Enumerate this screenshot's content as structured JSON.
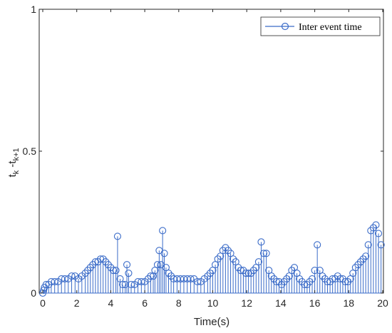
{
  "chart_data": {
    "type": "stem",
    "xlabel": "Time(s)",
    "ylabel_main": "t",
    "ylabel_sub1": "k",
    "ylabel_mid": " -t",
    "ylabel_sub2": "k+1",
    "xlim": [
      0,
      20
    ],
    "ylim": [
      0,
      1
    ],
    "xticks": [
      "0",
      "2",
      "4",
      "6",
      "8",
      "10",
      "12",
      "14",
      "16",
      "18",
      "20"
    ],
    "yticks": [
      "0",
      "0.5",
      "1"
    ],
    "legend": {
      "label": "Inter event time",
      "position": "top-right"
    },
    "grid": false,
    "series": [
      {
        "marker": "circle",
        "color": "#3a6bc8",
        "points": [
          [
            0.0,
            0.0
          ],
          [
            0.05,
            0.01
          ],
          [
            0.1,
            0.02
          ],
          [
            0.2,
            0.03
          ],
          [
            0.35,
            0.03
          ],
          [
            0.5,
            0.04
          ],
          [
            0.7,
            0.04
          ],
          [
            0.9,
            0.04
          ],
          [
            1.1,
            0.05
          ],
          [
            1.3,
            0.05
          ],
          [
            1.5,
            0.05
          ],
          [
            1.7,
            0.06
          ],
          [
            1.9,
            0.06
          ],
          [
            2.1,
            0.05
          ],
          [
            2.3,
            0.06
          ],
          [
            2.5,
            0.07
          ],
          [
            2.65,
            0.08
          ],
          [
            2.8,
            0.09
          ],
          [
            2.95,
            0.1
          ],
          [
            3.1,
            0.11
          ],
          [
            3.25,
            0.11
          ],
          [
            3.4,
            0.12
          ],
          [
            3.55,
            0.12
          ],
          [
            3.7,
            0.11
          ],
          [
            3.85,
            0.1
          ],
          [
            4.0,
            0.09
          ],
          [
            4.15,
            0.08
          ],
          [
            4.3,
            0.08
          ],
          [
            4.4,
            0.2
          ],
          [
            4.55,
            0.05
          ],
          [
            4.7,
            0.03
          ],
          [
            4.85,
            0.03
          ],
          [
            4.95,
            0.1
          ],
          [
            5.05,
            0.07
          ],
          [
            5.2,
            0.03
          ],
          [
            5.4,
            0.03
          ],
          [
            5.6,
            0.04
          ],
          [
            5.8,
            0.04
          ],
          [
            6.0,
            0.04
          ],
          [
            6.2,
            0.05
          ],
          [
            6.35,
            0.06
          ],
          [
            6.5,
            0.06
          ],
          [
            6.6,
            0.08
          ],
          [
            6.75,
            0.1
          ],
          [
            6.85,
            0.15
          ],
          [
            6.95,
            0.1
          ],
          [
            7.05,
            0.22
          ],
          [
            7.15,
            0.14
          ],
          [
            7.25,
            0.09
          ],
          [
            7.4,
            0.07
          ],
          [
            7.55,
            0.06
          ],
          [
            7.7,
            0.05
          ],
          [
            7.9,
            0.05
          ],
          [
            8.1,
            0.05
          ],
          [
            8.3,
            0.05
          ],
          [
            8.5,
            0.05
          ],
          [
            8.7,
            0.05
          ],
          [
            8.9,
            0.05
          ],
          [
            9.1,
            0.04
          ],
          [
            9.3,
            0.04
          ],
          [
            9.5,
            0.05
          ],
          [
            9.7,
            0.06
          ],
          [
            9.85,
            0.07
          ],
          [
            10.0,
            0.08
          ],
          [
            10.15,
            0.1
          ],
          [
            10.3,
            0.12
          ],
          [
            10.45,
            0.13
          ],
          [
            10.6,
            0.15
          ],
          [
            10.75,
            0.16
          ],
          [
            10.9,
            0.15
          ],
          [
            11.05,
            0.14
          ],
          [
            11.2,
            0.12
          ],
          [
            11.35,
            0.11
          ],
          [
            11.5,
            0.09
          ],
          [
            11.65,
            0.08
          ],
          [
            11.8,
            0.08
          ],
          [
            11.95,
            0.07
          ],
          [
            12.1,
            0.07
          ],
          [
            12.25,
            0.07
          ],
          [
            12.4,
            0.08
          ],
          [
            12.55,
            0.09
          ],
          [
            12.7,
            0.11
          ],
          [
            12.85,
            0.18
          ],
          [
            13.0,
            0.14
          ],
          [
            13.15,
            0.14
          ],
          [
            13.3,
            0.08
          ],
          [
            13.45,
            0.06
          ],
          [
            13.6,
            0.05
          ],
          [
            13.75,
            0.04
          ],
          [
            13.9,
            0.04
          ],
          [
            14.05,
            0.03
          ],
          [
            14.2,
            0.04
          ],
          [
            14.35,
            0.05
          ],
          [
            14.5,
            0.06
          ],
          [
            14.65,
            0.08
          ],
          [
            14.8,
            0.09
          ],
          [
            14.95,
            0.07
          ],
          [
            15.1,
            0.05
          ],
          [
            15.25,
            0.04
          ],
          [
            15.4,
            0.03
          ],
          [
            15.55,
            0.03
          ],
          [
            15.7,
            0.04
          ],
          [
            15.85,
            0.05
          ],
          [
            16.0,
            0.08
          ],
          [
            16.15,
            0.17
          ],
          [
            16.3,
            0.08
          ],
          [
            16.45,
            0.06
          ],
          [
            16.6,
            0.05
          ],
          [
            16.75,
            0.04
          ],
          [
            16.9,
            0.04
          ],
          [
            17.05,
            0.05
          ],
          [
            17.2,
            0.05
          ],
          [
            17.35,
            0.06
          ],
          [
            17.5,
            0.05
          ],
          [
            17.65,
            0.05
          ],
          [
            17.8,
            0.04
          ],
          [
            17.95,
            0.04
          ],
          [
            18.1,
            0.05
          ],
          [
            18.25,
            0.07
          ],
          [
            18.4,
            0.09
          ],
          [
            18.55,
            0.1
          ],
          [
            18.7,
            0.11
          ],
          [
            18.85,
            0.12
          ],
          [
            19.0,
            0.13
          ],
          [
            19.15,
            0.17
          ],
          [
            19.3,
            0.22
          ],
          [
            19.45,
            0.23
          ],
          [
            19.6,
            0.24
          ],
          [
            19.75,
            0.21
          ],
          [
            19.9,
            0.17
          ]
        ]
      }
    ]
  }
}
